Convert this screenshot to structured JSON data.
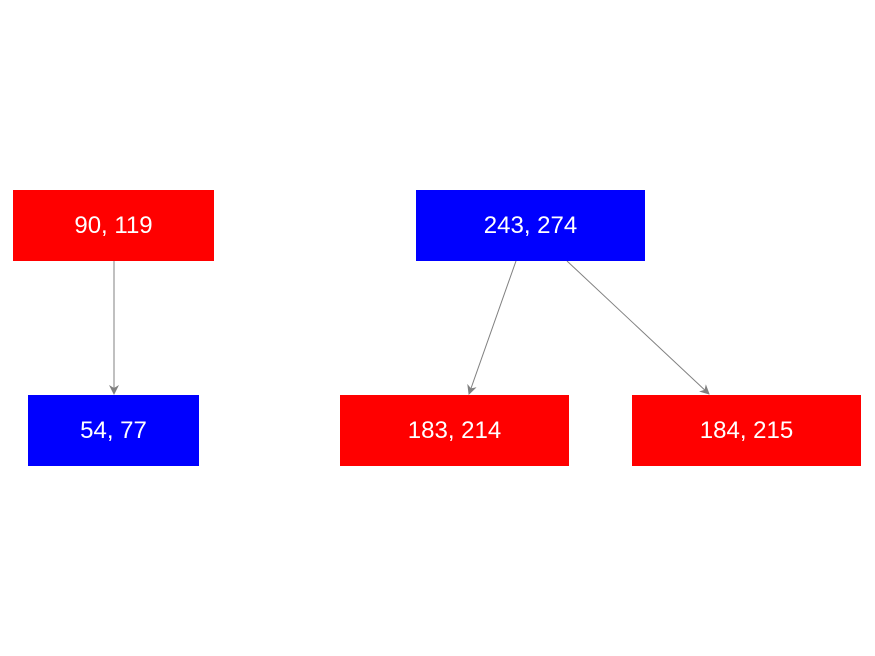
{
  "nodes": [
    {
      "id": "a",
      "label": "90, 119",
      "color": "#ff0000"
    },
    {
      "id": "b",
      "label": "54, 77",
      "color": "#0000ff"
    },
    {
      "id": "c",
      "label": "243, 274",
      "color": "#0000ff"
    },
    {
      "id": "d",
      "label": "183, 214",
      "color": "#ff0000"
    },
    {
      "id": "e",
      "label": "184, 215",
      "color": "#ff0000"
    }
  ],
  "edges": [
    {
      "from": "a",
      "to": "b"
    },
    {
      "from": "c",
      "to": "d"
    },
    {
      "from": "c",
      "to": "e"
    }
  ],
  "edge_color": "#808080"
}
